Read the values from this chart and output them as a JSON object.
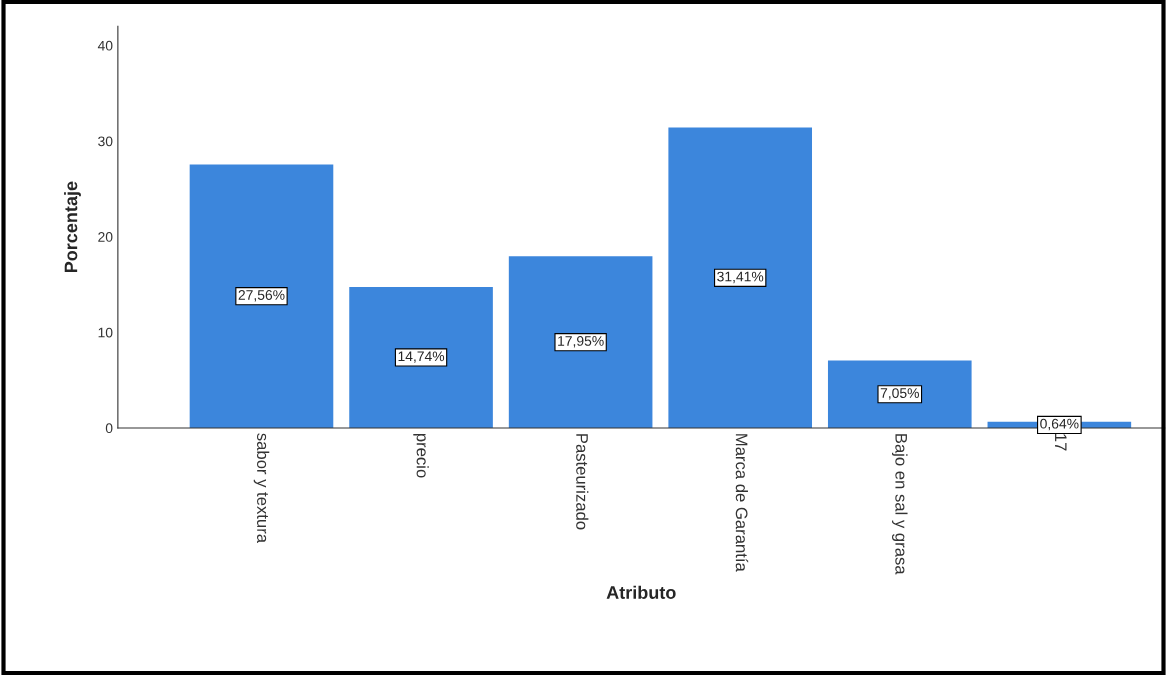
{
  "chart_data": {
    "type": "bar",
    "xlabel": "Atributo",
    "ylabel": "Porcentaje",
    "categories": [
      "sabor y textura",
      "precio",
      "Pasteurizado",
      "Marca de Garantía",
      "Bajo en sal y grasa",
      "17"
    ],
    "values": [
      27.56,
      14.74,
      17.95,
      31.41,
      7.05,
      0.64
    ],
    "value_labels": [
      "27,56%",
      "14,74%",
      "17,95%",
      "31,41%",
      "7,05%",
      "0,64%"
    ],
    "color": "#3c86dc",
    "ylim": [
      0,
      42
    ],
    "yticks": [
      0,
      10,
      20,
      30,
      40
    ],
    "grid": false
  }
}
